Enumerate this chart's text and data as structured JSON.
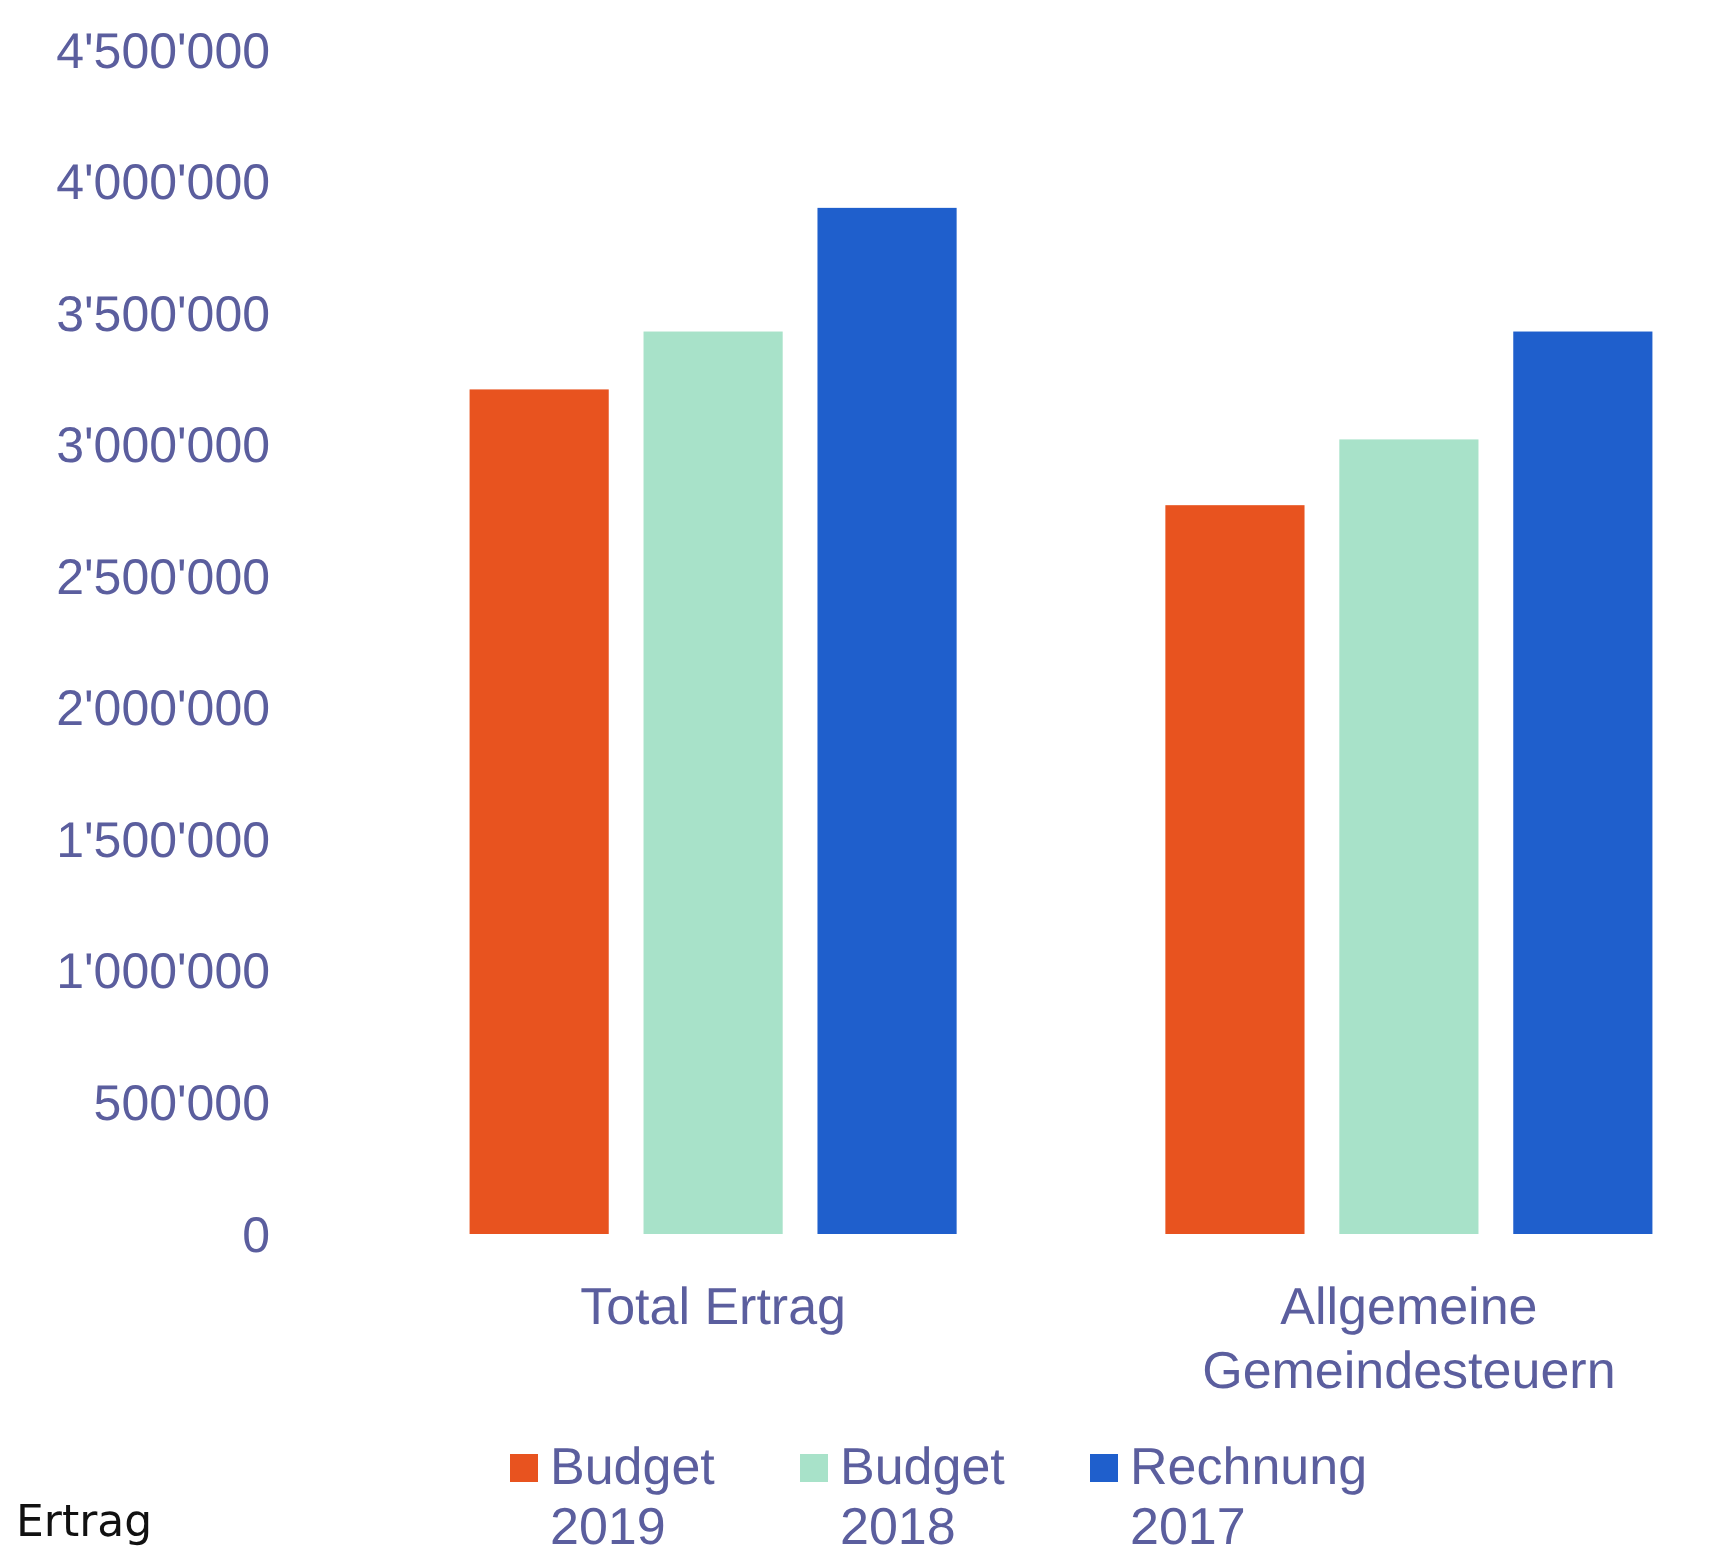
{
  "chart_data": {
    "type": "bar",
    "categories": [
      "Total Ertrag",
      "Allgemeine Gemeindesteuern"
    ],
    "series": [
      {
        "name": "Budget 2019",
        "color": "#e8531f",
        "values": [
          3210000,
          2770000
        ]
      },
      {
        "name": "Budget 2018",
        "color": "#a8e2c9",
        "values": [
          3430000,
          3020000
        ]
      },
      {
        "name": "Rechnung 2017",
        "color": "#1f5fcc",
        "values": [
          3900000,
          3430000
        ]
      }
    ],
    "ylim": [
      0,
      4500000
    ],
    "yticks": [
      0,
      {
        "value": 500000,
        "label": "500'000"
      },
      {
        "value": 1000000,
        "label": "1'000'000"
      },
      {
        "value": 1500000,
        "label": "1'500'000"
      },
      {
        "value": 2000000,
        "label": "2'000'000"
      },
      {
        "value": 2500000,
        "label": "2'500'000"
      },
      {
        "value": 3000000,
        "label": "3'000'000"
      },
      {
        "value": 3500000,
        "label": "3'500'000"
      },
      {
        "value": 4000000,
        "label": "4'000'000"
      },
      {
        "value": 4500000,
        "label": "4'500'000"
      }
    ],
    "grid": false,
    "legend": "bottom",
    "annotations": [
      "Ertrag"
    ]
  }
}
